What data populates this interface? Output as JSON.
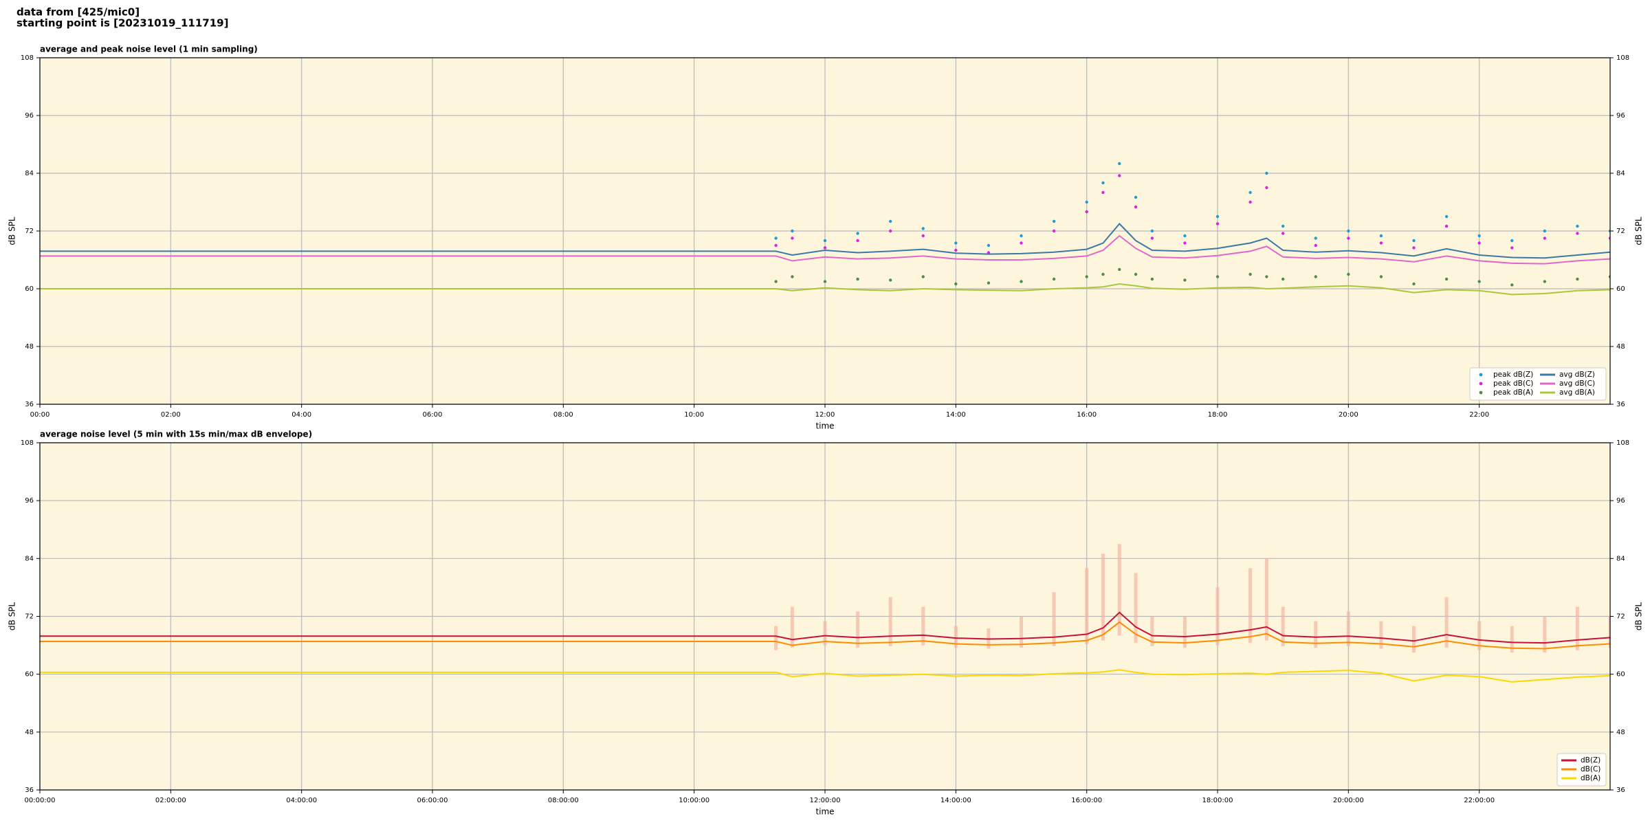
{
  "header": {
    "line1": "data from [425/mic0]",
    "line2": "starting point is [20231019_111719]"
  },
  "chart_data": [
    {
      "type": "line",
      "title": "average and peak noise level (1 min sampling)",
      "xlabel": "time",
      "ylabel": "dB SPL",
      "background": "#fdf6dc",
      "grid": true,
      "legend": "lower right",
      "legend_columns": 2,
      "xlim": [
        0,
        24
      ],
      "ylim": [
        36,
        108
      ],
      "yticks": [
        36,
        48,
        60,
        72,
        84,
        96,
        108
      ],
      "xticks": [
        {
          "value": 0,
          "label": "00:00"
        },
        {
          "value": 2,
          "label": "02:00"
        },
        {
          "value": 4,
          "label": "04:00"
        },
        {
          "value": 6,
          "label": "06:00"
        },
        {
          "value": 8,
          "label": "08:00"
        },
        {
          "value": 10,
          "label": "10:00"
        },
        {
          "value": 12,
          "label": "12:00"
        },
        {
          "value": 14,
          "label": "14:00"
        },
        {
          "value": 16,
          "label": "16:00"
        },
        {
          "value": 18,
          "label": "18:00"
        },
        {
          "value": 20,
          "label": "20:00"
        },
        {
          "value": 22,
          "label": "22:00"
        }
      ],
      "x": [
        0,
        11.25,
        11.5,
        12,
        12.5,
        13,
        13.5,
        14,
        14.5,
        15,
        15.5,
        16,
        16.25,
        16.5,
        16.75,
        17,
        17.5,
        18,
        18.5,
        18.75,
        19,
        19.5,
        20,
        20.5,
        21,
        21.5,
        22,
        22.5,
        23,
        23.5,
        24
      ],
      "series": [
        {
          "name": "peak dB(Z)",
          "marker": "dot",
          "color": "#1f9bd6",
          "values": [
            null,
            70.5,
            72.0,
            70.0,
            71.5,
            74.0,
            72.5,
            69.5,
            69.0,
            71.0,
            74.0,
            78.0,
            82.0,
            86.0,
            79.0,
            72.0,
            71.0,
            75.0,
            80.0,
            84.0,
            73.0,
            70.5,
            72.0,
            71.0,
            70.0,
            75.0,
            71.0,
            70.0,
            72.0,
            73.0,
            72.0
          ]
        },
        {
          "name": "peak dB(C)",
          "marker": "dot",
          "color": "#e020e0",
          "values": [
            null,
            69.0,
            70.5,
            68.5,
            70.0,
            72.0,
            71.0,
            68.0,
            67.5,
            69.5,
            72.0,
            76.0,
            80.0,
            83.5,
            77.0,
            70.5,
            69.5,
            73.5,
            78.0,
            81.0,
            71.5,
            69.0,
            70.5,
            69.5,
            68.5,
            73.0,
            69.5,
            68.5,
            70.5,
            71.5,
            70.5
          ]
        },
        {
          "name": "peak dB(A)",
          "marker": "dot",
          "color": "#4c8c4c",
          "values": [
            null,
            61.5,
            62.5,
            61.5,
            62.0,
            61.8,
            62.5,
            61.0,
            61.2,
            61.5,
            62.0,
            62.5,
            63.0,
            64.0,
            63.0,
            62.0,
            61.8,
            62.5,
            63.0,
            62.5,
            62.0,
            62.5,
            63.0,
            62.5,
            61.0,
            62.0,
            61.5,
            60.8,
            61.5,
            62.0,
            62.5
          ]
        },
        {
          "name": "avg dB(Z)",
          "color": "#3a78a8",
          "values": [
            67.8,
            67.8,
            67.0,
            68.0,
            67.5,
            67.8,
            68.2,
            67.4,
            67.2,
            67.3,
            67.6,
            68.2,
            69.5,
            73.5,
            70.0,
            68.0,
            67.8,
            68.4,
            69.5,
            70.5,
            68.0,
            67.6,
            67.9,
            67.5,
            66.8,
            68.3,
            67.0,
            66.5,
            66.4,
            67.0,
            67.6
          ]
        },
        {
          "name": "avg dB(C)",
          "color": "#e066cc",
          "values": [
            66.8,
            66.8,
            65.8,
            66.6,
            66.2,
            66.4,
            66.8,
            66.2,
            66.0,
            66.0,
            66.3,
            66.8,
            68.0,
            71.0,
            68.4,
            66.6,
            66.4,
            66.9,
            67.8,
            68.8,
            66.6,
            66.3,
            66.5,
            66.2,
            65.6,
            66.8,
            65.8,
            65.3,
            65.2,
            65.8,
            66.2
          ]
        },
        {
          "name": "avg dB(A)",
          "color": "#a8c83c",
          "values": [
            60.0,
            60.0,
            59.6,
            60.2,
            59.8,
            59.6,
            60.0,
            59.8,
            59.7,
            59.6,
            60.0,
            60.2,
            60.4,
            61.0,
            60.6,
            60.1,
            59.9,
            60.2,
            60.3,
            60.0,
            60.1,
            60.4,
            60.6,
            60.2,
            59.2,
            59.8,
            59.6,
            58.8,
            59.0,
            59.6,
            59.8
          ]
        }
      ]
    },
    {
      "type": "line",
      "title": "average noise level (5 min with 15s min/max dB envelope)",
      "xlabel": "time",
      "ylabel": "dB SPL",
      "background": "#fdf6dc",
      "grid": true,
      "legend": "lower right",
      "legend_columns": 1,
      "xlim": [
        0,
        24
      ],
      "ylim": [
        36,
        108
      ],
      "yticks": [
        36,
        48,
        60,
        72,
        84,
        96,
        108
      ],
      "xticks": [
        {
          "value": 0,
          "label": "00:00:00"
        },
        {
          "value": 2,
          "label": "02:00:00"
        },
        {
          "value": 4,
          "label": "04:00:00"
        },
        {
          "value": 6,
          "label": "06:00:00"
        },
        {
          "value": 8,
          "label": "08:00:00"
        },
        {
          "value": 10,
          "label": "10:00:00"
        },
        {
          "value": 12,
          "label": "12:00:00"
        },
        {
          "value": 14,
          "label": "14:00:00"
        },
        {
          "value": 16,
          "label": "16:00:00"
        },
        {
          "value": 18,
          "label": "18:00:00"
        },
        {
          "value": 20,
          "label": "20:00:00"
        },
        {
          "value": 22,
          "label": "22:00:00"
        }
      ],
      "x": [
        0,
        11.25,
        11.5,
        12,
        12.5,
        13,
        13.5,
        14,
        14.5,
        15,
        15.5,
        16,
        16.25,
        16.5,
        16.75,
        17,
        17.5,
        18,
        18.5,
        18.75,
        19,
        19.5,
        20,
        20.5,
        21,
        21.5,
        22,
        22.5,
        23,
        23.5,
        24
      ],
      "envelope": {
        "color": "#f2b6a2",
        "low": [
          null,
          65.0,
          65.5,
          66.0,
          65.5,
          65.8,
          66.0,
          65.5,
          65.3,
          65.5,
          65.8,
          66.2,
          67.0,
          68.0,
          66.5,
          65.8,
          65.5,
          66.0,
          66.5,
          67.0,
          65.8,
          65.5,
          65.8,
          65.3,
          64.5,
          65.5,
          65.0,
          64.5,
          64.5,
          65.0,
          65.5
        ],
        "high": [
          null,
          70.0,
          74.0,
          71.0,
          73.0,
          76.0,
          74.0,
          70.0,
          69.5,
          72.0,
          77.0,
          82.0,
          85.0,
          87.0,
          81.0,
          72.0,
          72.0,
          78.0,
          82.0,
          84.0,
          74.0,
          71.0,
          73.0,
          71.0,
          70.0,
          76.0,
          71.0,
          70.0,
          72.0,
          74.0,
          72.0
        ]
      },
      "series": [
        {
          "name": "dB(Z)",
          "color": "#c8103c",
          "values": [
            67.9,
            67.9,
            67.2,
            68.0,
            67.6,
            67.9,
            68.1,
            67.5,
            67.3,
            67.4,
            67.7,
            68.3,
            69.6,
            72.8,
            69.8,
            68.0,
            67.8,
            68.3,
            69.2,
            69.8,
            68.0,
            67.7,
            67.9,
            67.5,
            66.9,
            68.2,
            67.1,
            66.6,
            66.5,
            67.1,
            67.6
          ]
        },
        {
          "name": "dB(C)",
          "color": "#ff8c00",
          "values": [
            66.8,
            66.8,
            66.0,
            66.8,
            66.4,
            66.6,
            66.9,
            66.3,
            66.1,
            66.2,
            66.5,
            67.0,
            68.2,
            70.8,
            68.3,
            66.7,
            66.5,
            67.0,
            67.8,
            68.4,
            66.7,
            66.4,
            66.6,
            66.3,
            65.7,
            66.9,
            65.9,
            65.4,
            65.3,
            65.9,
            66.3
          ]
        },
        {
          "name": "dB(A)",
          "color": "#ffd700",
          "values": [
            60.4,
            60.4,
            59.5,
            60.2,
            59.6,
            59.8,
            60.0,
            59.6,
            59.8,
            59.7,
            60.1,
            60.3,
            60.5,
            60.9,
            60.4,
            60.0,
            59.9,
            60.1,
            60.2,
            60.0,
            60.4,
            60.6,
            60.8,
            60.2,
            58.6,
            59.8,
            59.5,
            58.4,
            58.9,
            59.4,
            59.7
          ]
        }
      ]
    }
  ]
}
